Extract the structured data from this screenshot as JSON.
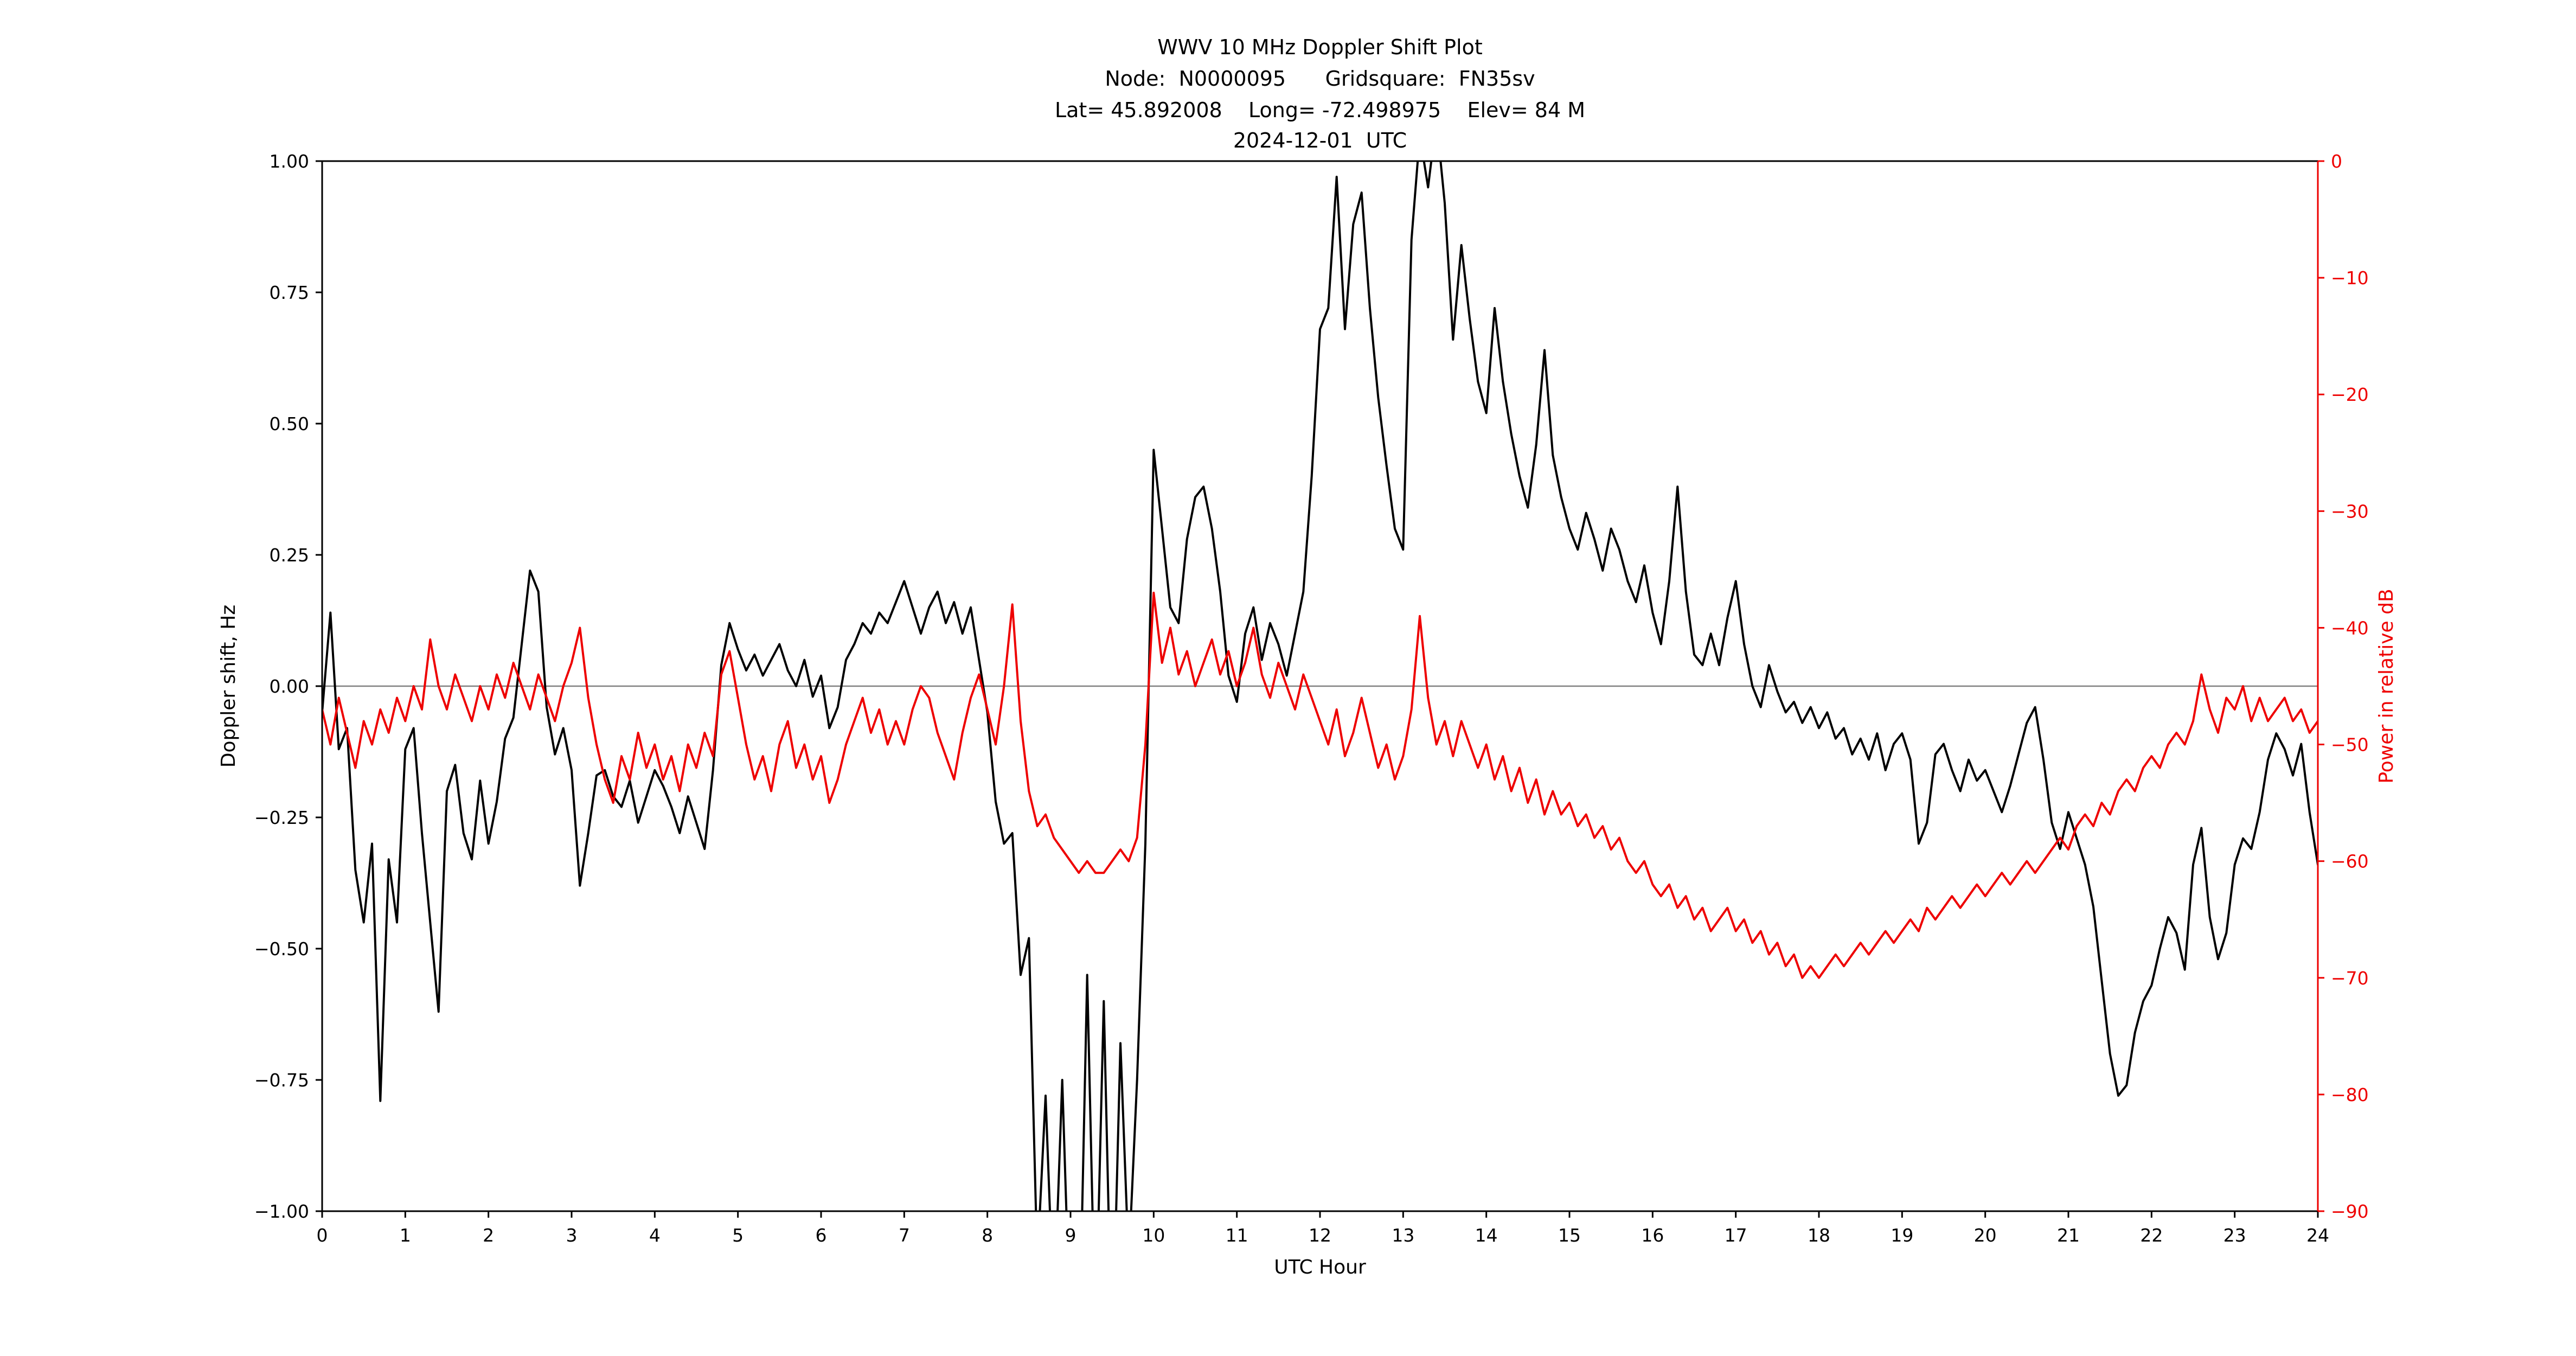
{
  "title": {
    "line1": "WWV 10 MHz Doppler Shift Plot",
    "line2": "Node:  N0000095      Gridsquare:  FN35sv",
    "line3": "Lat= 45.892008    Long= -72.498975    Elev= 84 M",
    "line4": "2024-12-01  UTC"
  },
  "axes": {
    "x_label": "UTC Hour",
    "y_left_label": "Doppler shift, Hz",
    "y_right_label": "Power in relative dB"
  },
  "colors": {
    "doppler": "#000000",
    "power": "#ee0000",
    "zero_line": "#808080",
    "frame": "#000000",
    "background": "#ffffff"
  },
  "chart_data": {
    "type": "line",
    "title": "WWV 10 MHz Doppler Shift Plot",
    "xlabel": "UTC Hour",
    "x_range": [
      0,
      24
    ],
    "x_start": 0,
    "x_step": 0.1,
    "x_tick_values": [
      0,
      1,
      2,
      3,
      4,
      5,
      6,
      7,
      8,
      9,
      10,
      11,
      12,
      13,
      14,
      15,
      16,
      17,
      18,
      19,
      20,
      21,
      22,
      23,
      24
    ],
    "x_tick_labels": [
      "0",
      "1",
      "2",
      "3",
      "4",
      "5",
      "6",
      "7",
      "8",
      "9",
      "10",
      "11",
      "12",
      "13",
      "14",
      "15",
      "16",
      "17",
      "18",
      "19",
      "20",
      "21",
      "22",
      "23",
      "24"
    ],
    "y_left": {
      "label": "Doppler shift, Hz",
      "range": [
        -1.0,
        1.0
      ],
      "tick_values": [
        1.0,
        0.75,
        0.5,
        0.25,
        0.0,
        -0.25,
        -0.5,
        -0.75,
        -1.0
      ],
      "tick_labels": [
        "1.00",
        "0.75",
        "0.50",
        "0.25",
        "0.00",
        "−0.25",
        "−0.50",
        "−0.75",
        "−1.00"
      ]
    },
    "y_right": {
      "label": "Power in relative dB",
      "range": [
        -90,
        0
      ],
      "tick_values": [
        0,
        -10,
        -20,
        -30,
        -40,
        -50,
        -60,
        -70,
        -80,
        -90
      ],
      "tick_labels": [
        "0",
        "−10",
        "−20",
        "−30",
        "−40",
        "−50",
        "−60",
        "−70",
        "−80",
        "−90"
      ]
    },
    "grid": false,
    "legend": "none",
    "series": [
      {
        "name": "Doppler shift, Hz",
        "axis": "left",
        "color": "#000000",
        "values": [
          -0.05,
          0.14,
          -0.12,
          -0.08,
          -0.35,
          -0.45,
          -0.3,
          -0.79,
          -0.33,
          -0.45,
          -0.12,
          -0.08,
          -0.28,
          -0.45,
          -0.62,
          -0.2,
          -0.15,
          -0.28,
          -0.33,
          -0.18,
          -0.3,
          -0.22,
          -0.1,
          -0.06,
          0.08,
          0.22,
          0.18,
          -0.04,
          -0.13,
          -0.08,
          -0.16,
          -0.38,
          -0.28,
          -0.17,
          -0.16,
          -0.21,
          -0.23,
          -0.18,
          -0.26,
          -0.21,
          -0.16,
          -0.19,
          -0.23,
          -0.28,
          -0.21,
          -0.26,
          -0.31,
          -0.16,
          0.04,
          0.12,
          0.07,
          0.03,
          0.06,
          0.02,
          0.05,
          0.08,
          0.03,
          0.0,
          0.05,
          -0.02,
          0.02,
          -0.08,
          -0.04,
          0.05,
          0.08,
          0.12,
          0.1,
          0.14,
          0.12,
          0.16,
          0.2,
          0.15,
          0.1,
          0.15,
          0.18,
          0.12,
          0.16,
          0.1,
          0.15,
          0.05,
          -0.05,
          -0.22,
          -0.3,
          -0.28,
          -0.55,
          -0.48,
          -1.1,
          -0.78,
          -1.2,
          -0.75,
          -1.25,
          -1.3,
          -0.55,
          -1.25,
          -0.6,
          -1.3,
          -0.68,
          -1.1,
          -0.75,
          -0.3,
          0.45,
          0.3,
          0.15,
          0.12,
          0.28,
          0.36,
          0.38,
          0.3,
          0.18,
          0.02,
          -0.03,
          0.1,
          0.15,
          0.05,
          0.12,
          0.08,
          0.02,
          0.1,
          0.18,
          0.4,
          0.68,
          0.72,
          0.97,
          0.68,
          0.88,
          0.94,
          0.72,
          0.55,
          0.42,
          0.3,
          0.26,
          0.85,
          1.05,
          0.95,
          1.08,
          0.92,
          0.66,
          0.84,
          0.7,
          0.58,
          0.52,
          0.72,
          0.58,
          0.48,
          0.4,
          0.34,
          0.46,
          0.64,
          0.44,
          0.36,
          0.3,
          0.26,
          0.33,
          0.28,
          0.22,
          0.3,
          0.26,
          0.2,
          0.16,
          0.23,
          0.14,
          0.08,
          0.2,
          0.38,
          0.18,
          0.06,
          0.04,
          0.1,
          0.04,
          0.13,
          0.2,
          0.08,
          0.0,
          -0.04,
          0.04,
          -0.01,
          -0.05,
          -0.03,
          -0.07,
          -0.04,
          -0.08,
          -0.05,
          -0.1,
          -0.08,
          -0.13,
          -0.1,
          -0.14,
          -0.09,
          -0.16,
          -0.11,
          -0.09,
          -0.14,
          -0.3,
          -0.26,
          -0.13,
          -0.11,
          -0.16,
          -0.2,
          -0.14,
          -0.18,
          -0.16,
          -0.2,
          -0.24,
          -0.19,
          -0.13,
          -0.07,
          -0.04,
          -0.14,
          -0.26,
          -0.31,
          -0.24,
          -0.29,
          -0.34,
          -0.42,
          -0.56,
          -0.7,
          -0.78,
          -0.76,
          -0.66,
          -0.6,
          -0.57,
          -0.5,
          -0.44,
          -0.47,
          -0.54,
          -0.34,
          -0.27,
          -0.44,
          -0.52,
          -0.47,
          -0.34,
          -0.29,
          -0.31,
          -0.24,
          -0.14,
          -0.09,
          -0.12,
          -0.17,
          -0.11,
          -0.24,
          -0.34
        ]
      },
      {
        "name": "Power in relative dB",
        "axis": "right",
        "color": "#ee0000",
        "values": [
          -47,
          -50,
          -46,
          -49,
          -52,
          -48,
          -50,
          -47,
          -49,
          -46,
          -48,
          -45,
          -47,
          -41,
          -45,
          -47,
          -44,
          -46,
          -48,
          -45,
          -47,
          -44,
          -46,
          -43,
          -45,
          -47,
          -44,
          -46,
          -48,
          -45,
          -43,
          -40,
          -46,
          -50,
          -53,
          -55,
          -51,
          -53,
          -49,
          -52,
          -50,
          -53,
          -51,
          -54,
          -50,
          -52,
          -49,
          -51,
          -44,
          -42,
          -46,
          -50,
          -53,
          -51,
          -54,
          -50,
          -48,
          -52,
          -50,
          -53,
          -51,
          -55,
          -53,
          -50,
          -48,
          -46,
          -49,
          -47,
          -50,
          -48,
          -50,
          -47,
          -45,
          -46,
          -49,
          -51,
          -53,
          -49,
          -46,
          -44,
          -47,
          -50,
          -45,
          -38,
          -48,
          -54,
          -57,
          -56,
          -58,
          -59,
          -60,
          -61,
          -60,
          -61,
          -61,
          -60,
          -59,
          -60,
          -58,
          -50,
          -37,
          -43,
          -40,
          -44,
          -42,
          -45,
          -43,
          -41,
          -44,
          -42,
          -45,
          -43,
          -40,
          -44,
          -46,
          -43,
          -45,
          -47,
          -44,
          -46,
          -48,
          -50,
          -47,
          -51,
          -49,
          -46,
          -49,
          -52,
          -50,
          -53,
          -51,
          -47,
          -39,
          -46,
          -50,
          -48,
          -51,
          -48,
          -50,
          -52,
          -50,
          -53,
          -51,
          -54,
          -52,
          -55,
          -53,
          -56,
          -54,
          -56,
          -55,
          -57,
          -56,
          -58,
          -57,
          -59,
          -58,
          -60,
          -61,
          -60,
          -62,
          -63,
          -62,
          -64,
          -63,
          -65,
          -64,
          -66,
          -65,
          -64,
          -66,
          -65,
          -67,
          -66,
          -68,
          -67,
          -69,
          -68,
          -70,
          -69,
          -70,
          -69,
          -68,
          -69,
          -68,
          -67,
          -68,
          -67,
          -66,
          -67,
          -66,
          -65,
          -66,
          -64,
          -65,
          -64,
          -63,
          -64,
          -63,
          -62,
          -63,
          -62,
          -61,
          -62,
          -61,
          -60,
          -61,
          -60,
          -59,
          -58,
          -59,
          -57,
          -56,
          -57,
          -55,
          -56,
          -54,
          -53,
          -54,
          -52,
          -51,
          -52,
          -50,
          -49,
          -50,
          -48,
          -44,
          -47,
          -49,
          -46,
          -47,
          -45,
          -48,
          -46,
          -48,
          -47,
          -46,
          -48,
          -47,
          -49,
          -48
        ]
      }
    ]
  }
}
